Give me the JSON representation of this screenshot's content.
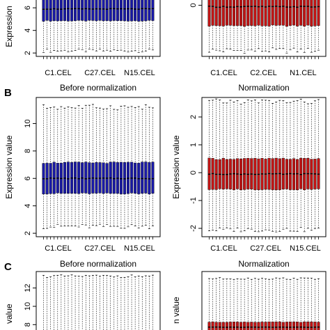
{
  "chart_data": [
    {
      "type": "boxplot",
      "panel": "A",
      "side": "left",
      "ylabel": "Expression",
      "xlabel": "Before normalization",
      "x_tick_labels": [
        "C1.CEL",
        "C27.CEL",
        "N15.CEL"
      ],
      "y_ticks": [
        2,
        4,
        6
      ],
      "ylim": [
        1.7,
        7.0
      ],
      "box_color": "#1a1aa6",
      "n_boxes": 32,
      "box_stats": {
        "whisker_low": 2.2,
        "q1": 4.85,
        "median": 5.9,
        "q3": 6.95,
        "whisker_high": 7.5
      }
    },
    {
      "type": "boxplot",
      "panel": "A",
      "side": "right",
      "ylabel": "",
      "xlabel": "Normalization",
      "x_tick_labels": [
        "C1.CEL",
        "C2.CEL",
        "N1.CEL"
      ],
      "y_ticks": [
        0
      ],
      "ylim": [
        -1.75,
        0.3
      ],
      "box_color": "#c01515",
      "n_boxes": 32,
      "box_stats": {
        "whisker_low": -1.55,
        "q1": -0.7,
        "median": -0.05,
        "q3": 0.55,
        "whisker_high": 1.0
      }
    },
    {
      "type": "boxplot",
      "panel": "B",
      "side": "left",
      "ylabel": "Expression value",
      "xlabel": "Before normalization",
      "x_tick_labels": [
        "C1.CEL",
        "C27.CEL",
        "N15.CEL"
      ],
      "y_ticks": [
        2,
        4,
        6,
        8,
        10
      ],
      "ylim": [
        1.75,
        11.9
      ],
      "box_color": "#1a1aa6",
      "n_boxes": 32,
      "box_stats": {
        "whisker_low": 2.5,
        "q1": 4.9,
        "median": 6.0,
        "q3": 7.15,
        "whisker_high": 11.2
      }
    },
    {
      "type": "boxplot",
      "panel": "B",
      "side": "right",
      "ylabel": "Expression value",
      "xlabel": "Normalization",
      "x_tick_labels": [
        "C1.CEL",
        "C27.CEL",
        "N15.CEL"
      ],
      "y_ticks": [
        -2,
        -1,
        0,
        1,
        2
      ],
      "ylim": [
        -2.3,
        2.7
      ],
      "box_color": "#c01515",
      "n_boxes": 32,
      "box_stats": {
        "whisker_low": -2.05,
        "q1": -0.6,
        "median": -0.05,
        "q3": 0.5,
        "whisker_high": 2.55
      }
    },
    {
      "type": "boxplot",
      "panel": "C",
      "side": "left",
      "ylabel": "value",
      "xlabel": "",
      "x_tick_labels": [],
      "y_ticks": [
        8,
        10,
        12
      ],
      "ylim": [
        6.2,
        13.8
      ],
      "box_color": "#1a1aa6",
      "n_boxes": 32,
      "box_stats": {
        "whisker_low": 3.0,
        "q1": 5.0,
        "median": 6.1,
        "q3": 6.6,
        "whisker_high": 13.3
      }
    },
    {
      "type": "boxplot",
      "panel": "C",
      "side": "right",
      "ylabel": "n value",
      "xlabel": "",
      "x_tick_labels": [],
      "y_ticks": [],
      "ylim": [
        -1.5,
        2.5
      ],
      "box_color": "#c01515",
      "n_boxes": 32,
      "box_stats": {
        "whisker_low": -2.0,
        "q1": -1.0,
        "median": -0.7,
        "q3": -0.4,
        "whisker_high": 2.1
      }
    }
  ]
}
